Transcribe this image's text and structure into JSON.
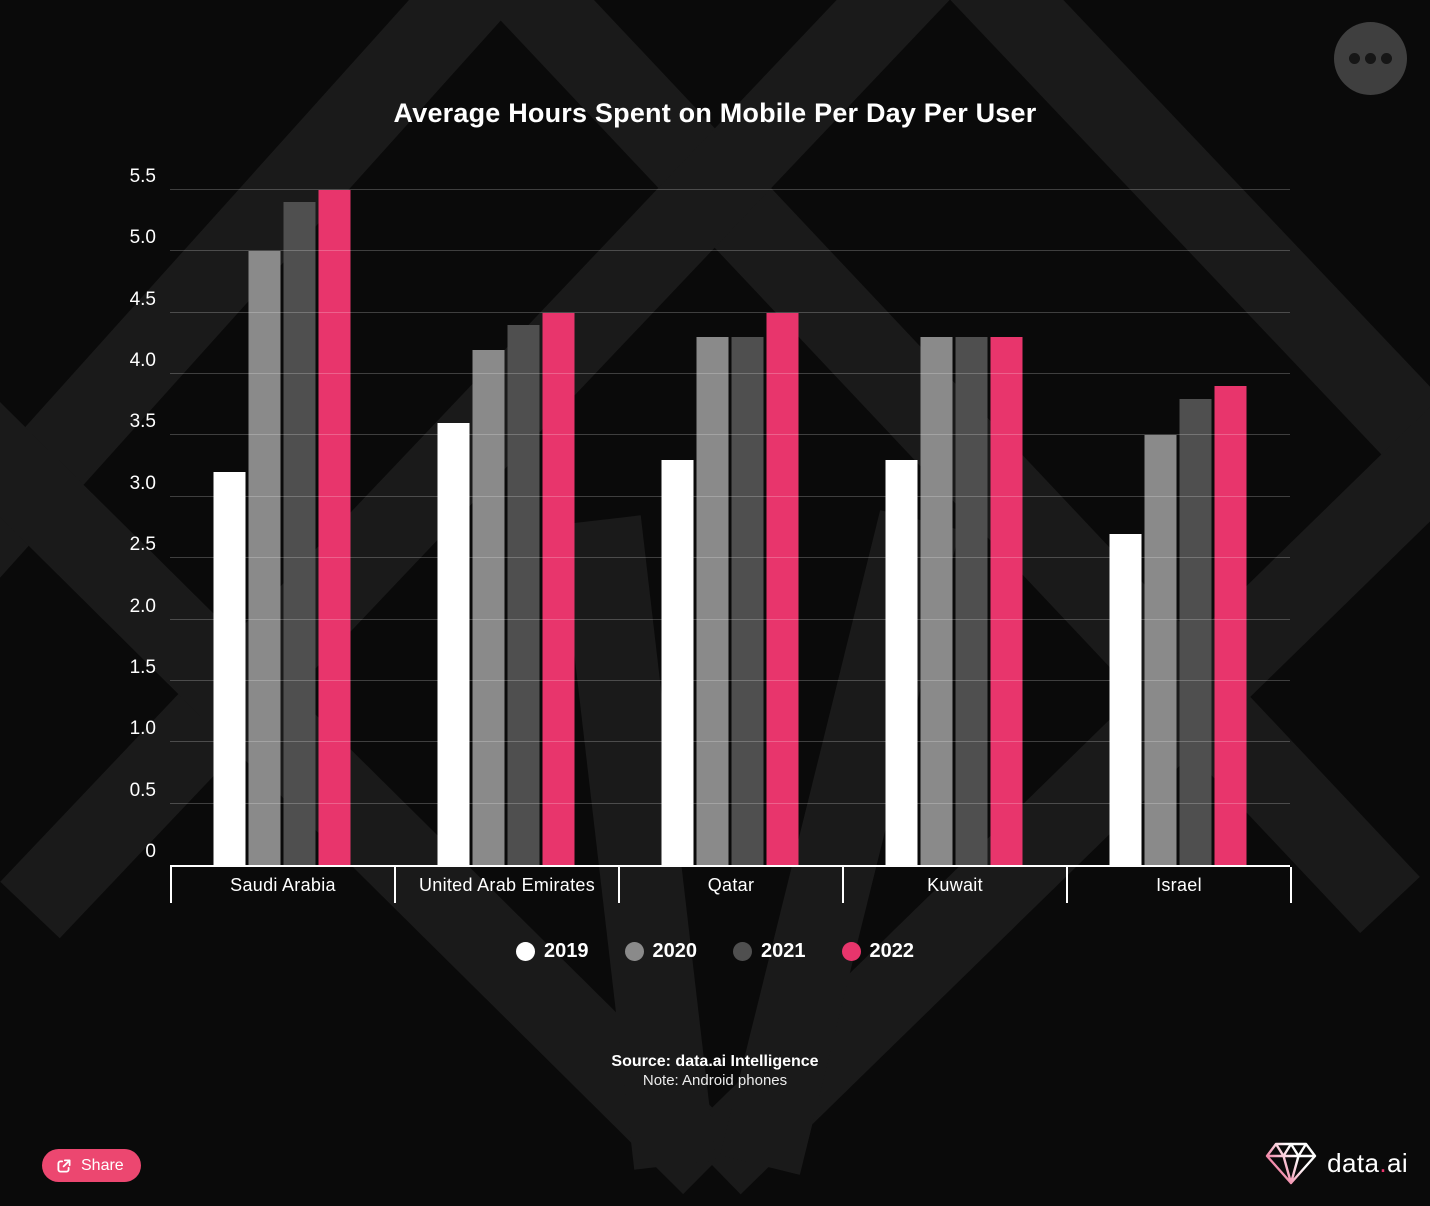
{
  "chart_data": {
    "type": "bar",
    "title": "Average Hours Spent on Mobile Per Day Per User",
    "categories": [
      "Saudi Arabia",
      "United Arab Emirates",
      "Qatar",
      "Kuwait",
      "Israel"
    ],
    "series": [
      {
        "name": "2019",
        "color": "#ffffff",
        "values": [
          3.2,
          3.6,
          3.3,
          3.3,
          2.7
        ]
      },
      {
        "name": "2020",
        "color": "#8a8a8a",
        "values": [
          5.0,
          4.2,
          4.3,
          4.3,
          3.5
        ]
      },
      {
        "name": "2021",
        "color": "#4f4f4f",
        "values": [
          5.4,
          4.4,
          4.3,
          4.3,
          3.8
        ]
      },
      {
        "name": "2022",
        "color": "#e8356c",
        "values": [
          5.5,
          4.5,
          4.5,
          4.3,
          3.9
        ]
      }
    ],
    "ylim": [
      0,
      5.5
    ],
    "ytick_labels": [
      "0",
      "0.5",
      "1.0",
      "1.5",
      "2.0",
      "2.5",
      "3.0",
      "3.5",
      "4.0",
      "4.5",
      "5.0",
      "5.5"
    ],
    "grid": true,
    "legend_position": "bottom",
    "xlabel": "",
    "ylabel": ""
  },
  "footer": {
    "source": "Source: data.ai Intelligence",
    "note": "Note: Android phones"
  },
  "share_button": {
    "label": "Share",
    "icon": "share-icon",
    "color": "#ec4770"
  },
  "logo": {
    "icon": "diamond-logo-icon",
    "brand_pre": "data",
    "brand_dot": ".",
    "brand_post": "ai"
  },
  "menu_button": {
    "icon": "ellipsis-icon"
  },
  "colors": {
    "background": "#0a0a0a",
    "watermark": "#1a1a1a",
    "accent_pink": "#e8356c",
    "gridline": "rgba(255,255,255,0.22)",
    "menu_circle": "#3f3f3f"
  }
}
